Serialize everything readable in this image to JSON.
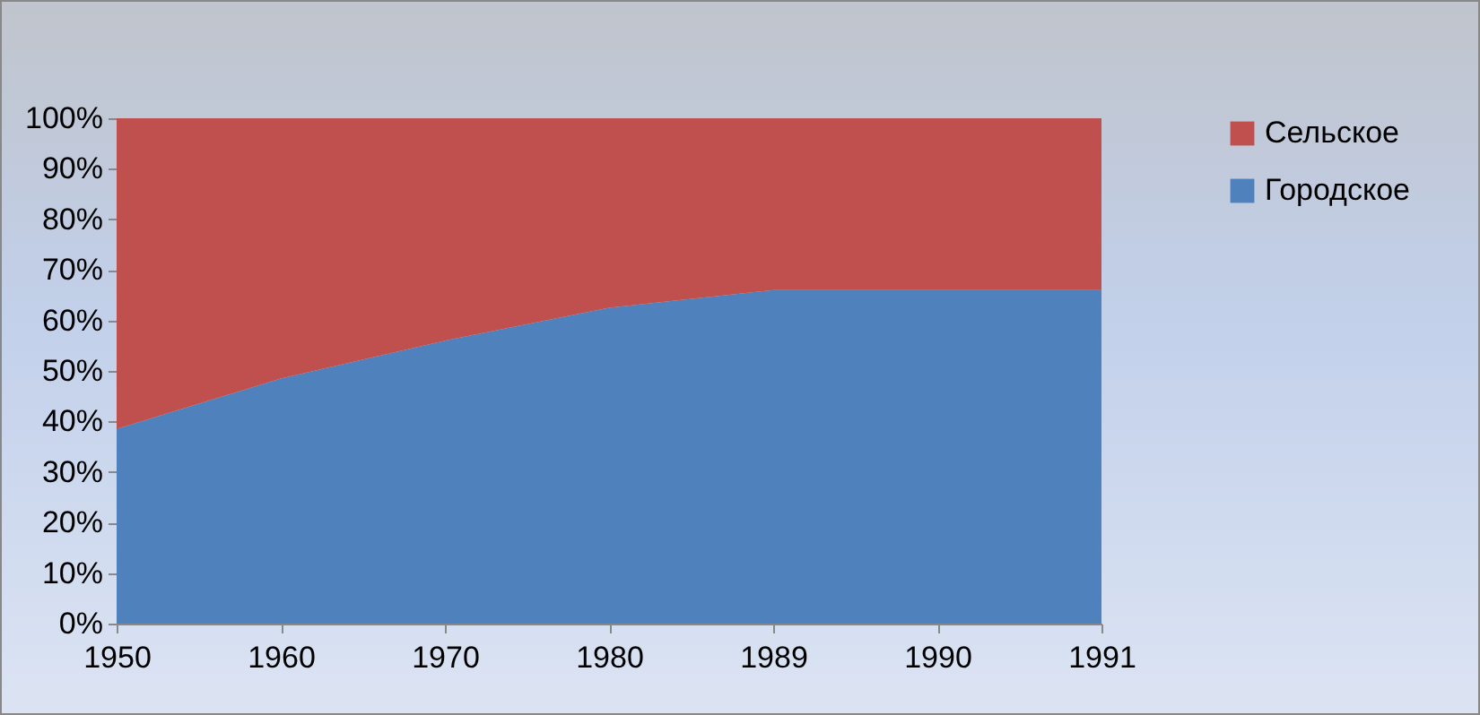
{
  "chart_data": {
    "type": "area",
    "stacked": true,
    "categories": [
      "1950",
      "1960",
      "1970",
      "1980",
      "1989",
      "1990",
      "1991"
    ],
    "series": [
      {
        "name": "Городское",
        "color": "#4f81bd",
        "values": [
          38.5,
          48.5,
          56,
          62.5,
          66,
          66,
          66
        ]
      },
      {
        "name": "Сельское",
        "color": "#c0504d",
        "values": [
          61.5,
          51.5,
          44,
          37.5,
          34,
          34,
          34
        ]
      }
    ],
    "ylim": [
      0,
      100
    ],
    "yticks": [
      {
        "value": 0,
        "label": "0%"
      },
      {
        "value": 10,
        "label": "10%"
      },
      {
        "value": 20,
        "label": "20%"
      },
      {
        "value": 30,
        "label": "30%"
      },
      {
        "value": 40,
        "label": "40%"
      },
      {
        "value": 50,
        "label": "50%"
      },
      {
        "value": 60,
        "label": "60%"
      },
      {
        "value": 70,
        "label": "70%"
      },
      {
        "value": 80,
        "label": "80%"
      },
      {
        "value": 90,
        "label": "90%"
      },
      {
        "value": 100,
        "label": "100%"
      }
    ],
    "grid": false,
    "legend": "right"
  }
}
